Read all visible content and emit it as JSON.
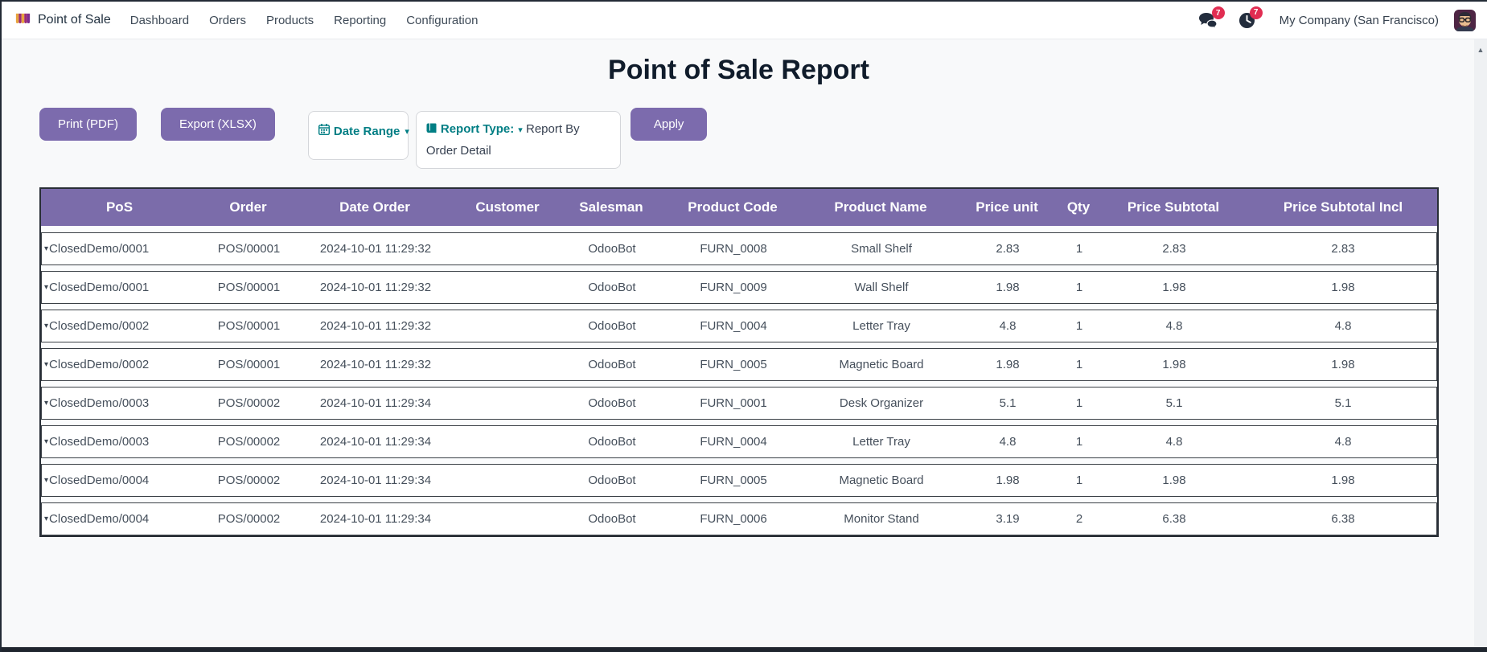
{
  "navbar": {
    "app_name": "Point of Sale",
    "menu_items": [
      "Dashboard",
      "Orders",
      "Products",
      "Reporting",
      "Configuration"
    ],
    "messages_badge": "7",
    "activities_badge": "7",
    "company": "My Company (San Francisco)"
  },
  "page": {
    "title": "Point of Sale Report"
  },
  "toolbar": {
    "print_label": "Print (PDF)",
    "export_label": "Export (XLSX)",
    "date_range_label": "Date Range",
    "report_type_label": "Report Type:",
    "report_type_value": "Report By Order Detail",
    "apply_label": "Apply"
  },
  "table": {
    "columns": [
      "PoS",
      "Order",
      "Date Order",
      "Customer",
      "Salesman",
      "Product Code",
      "Product Name",
      "Price unit",
      "Qty",
      "Price Subtotal",
      "Price Subtotal Incl"
    ],
    "rows": [
      [
        "ClosedDemo/0001",
        "POS/00001",
        "2024-10-01 11:29:32",
        "",
        "OdooBot",
        "FURN_0008",
        "Small Shelf",
        "2.83",
        "1",
        "2.83",
        "2.83"
      ],
      [
        "ClosedDemo/0001",
        "POS/00001",
        "2024-10-01 11:29:32",
        "",
        "OdooBot",
        "FURN_0009",
        "Wall Shelf",
        "1.98",
        "1",
        "1.98",
        "1.98"
      ],
      [
        "ClosedDemo/0002",
        "POS/00001",
        "2024-10-01 11:29:32",
        "",
        "OdooBot",
        "FURN_0004",
        "Letter Tray",
        "4.8",
        "1",
        "4.8",
        "4.8"
      ],
      [
        "ClosedDemo/0002",
        "POS/00001",
        "2024-10-01 11:29:32",
        "",
        "OdooBot",
        "FURN_0005",
        "Magnetic Board",
        "1.98",
        "1",
        "1.98",
        "1.98"
      ],
      [
        "ClosedDemo/0003",
        "POS/00002",
        "2024-10-01 11:29:34",
        "",
        "OdooBot",
        "FURN_0001",
        "Desk Organizer",
        "5.1",
        "1",
        "5.1",
        "5.1"
      ],
      [
        "ClosedDemo/0003",
        "POS/00002",
        "2024-10-01 11:29:34",
        "",
        "OdooBot",
        "FURN_0004",
        "Letter Tray",
        "4.8",
        "1",
        "4.8",
        "4.8"
      ],
      [
        "ClosedDemo/0004",
        "POS/00002",
        "2024-10-01 11:29:34",
        "",
        "OdooBot",
        "FURN_0005",
        "Magnetic Board",
        "1.98",
        "1",
        "1.98",
        "1.98"
      ],
      [
        "ClosedDemo/0004",
        "POS/00002",
        "2024-10-01 11:29:34",
        "",
        "OdooBot",
        "FURN_0006",
        "Monitor Stand",
        "3.19",
        "2",
        "6.38",
        "6.38"
      ]
    ]
  },
  "icons": {
    "dropdown_caret": "▾",
    "row_caret": "▾",
    "scroll_up_arrow": "▲"
  },
  "colors": {
    "accent_purple": "#7c6bad",
    "table_header_purple": "#7b6caa",
    "teal": "#017e84",
    "badge_red": "#e12d52",
    "dark_text": "#374151",
    "row_border": "#3a4046",
    "page_background": "#f8f9fa"
  }
}
